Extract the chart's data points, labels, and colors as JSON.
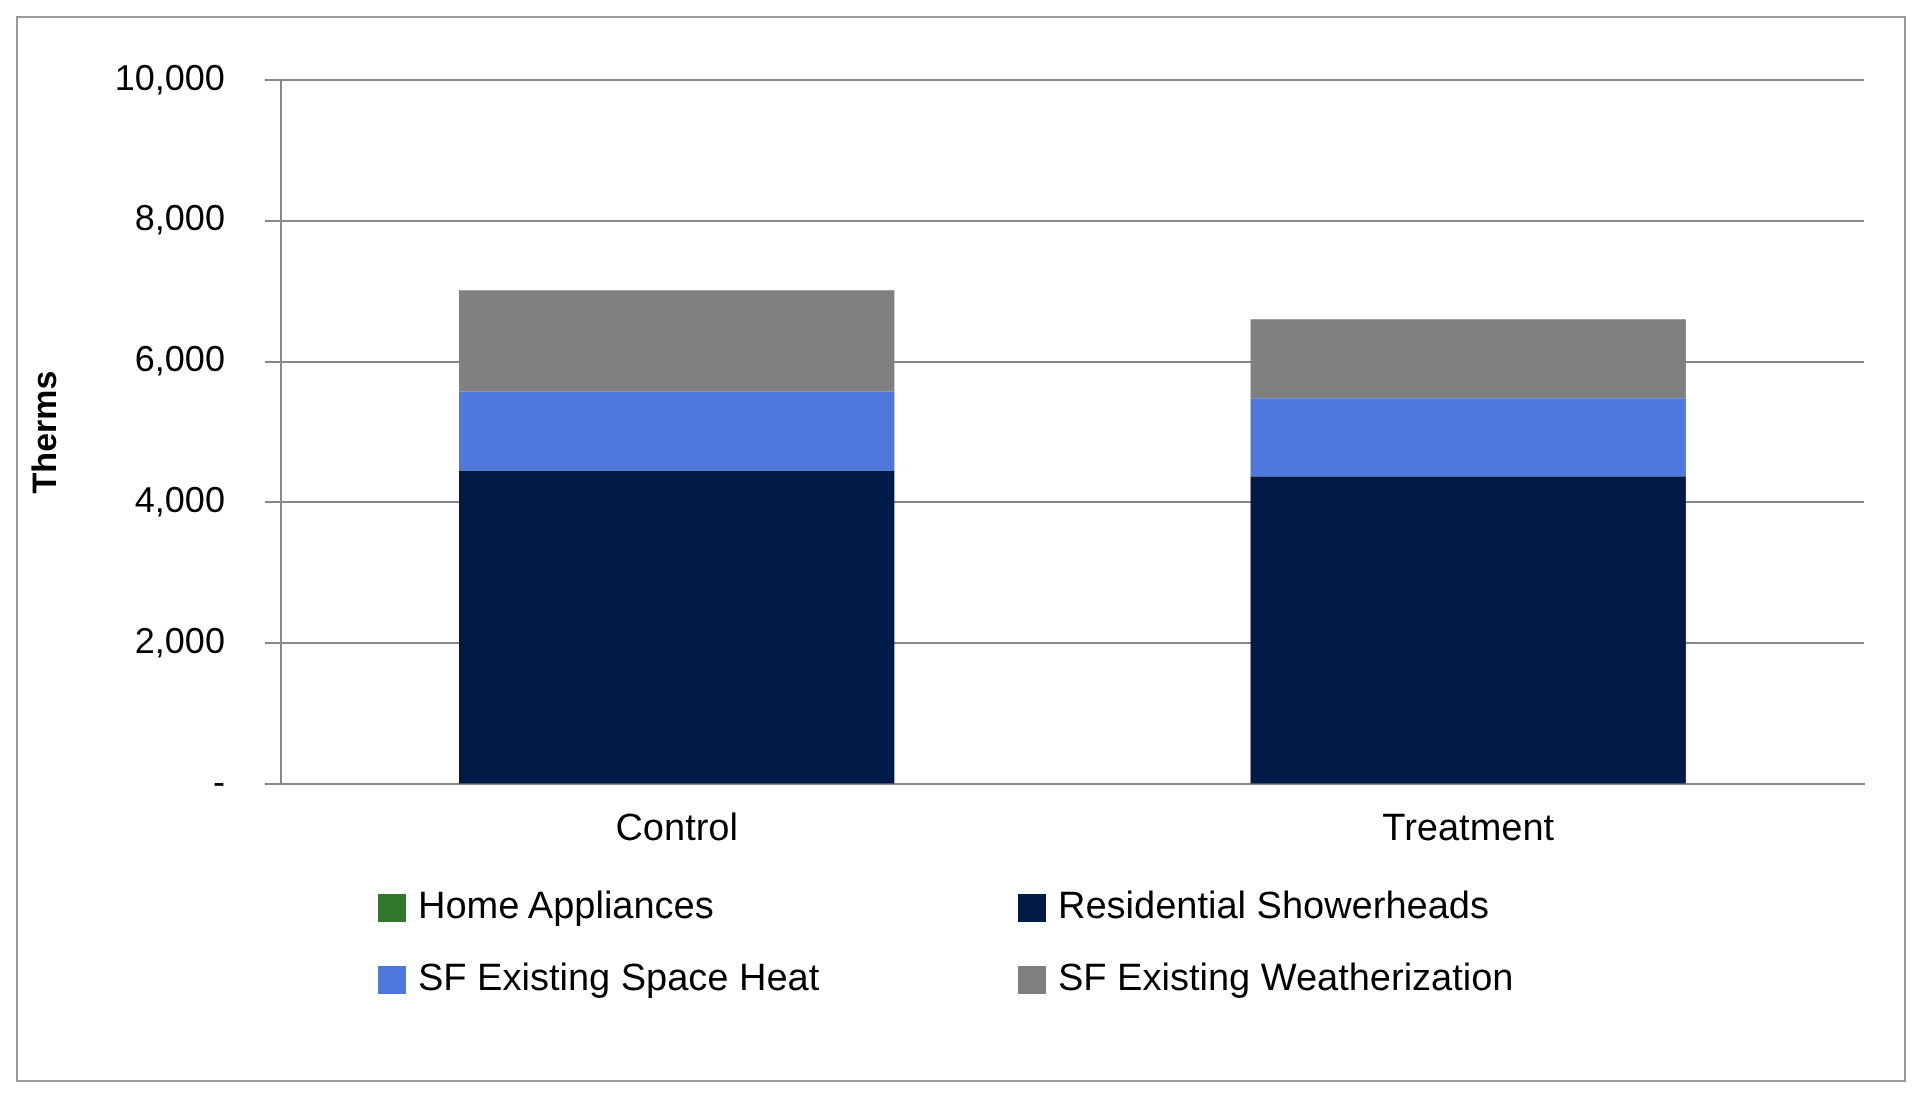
{
  "chart_data": {
    "type": "bar",
    "stacked": true,
    "ylabel": "Therms",
    "categories": [
      "Control",
      "Treatment"
    ],
    "series": [
      {
        "name": "Home Appliances",
        "color": "#31782f",
        "values": [
          0,
          0
        ]
      },
      {
        "name": "Residential Showerheads",
        "color": "#001a47",
        "values": [
          4450,
          4370
        ]
      },
      {
        "name": "SF Existing Space Heat",
        "color": "#4f78dc",
        "values": [
          1120,
          1110
        ]
      },
      {
        "name": "SF Existing Weatherization",
        "color": "#808080",
        "values": [
          1440,
          1120
        ]
      }
    ],
    "ylim": [
      0,
      10000
    ],
    "yticks": [
      {
        "value": 0,
        "label": "-"
      },
      {
        "value": 2000,
        "label": "2,000"
      },
      {
        "value": 4000,
        "label": "4,000"
      },
      {
        "value": 6000,
        "label": "6,000"
      },
      {
        "value": 8000,
        "label": "8,000"
      },
      {
        "value": 10000,
        "label": "10,000"
      }
    ],
    "grid": "y",
    "legend": "bottom"
  }
}
